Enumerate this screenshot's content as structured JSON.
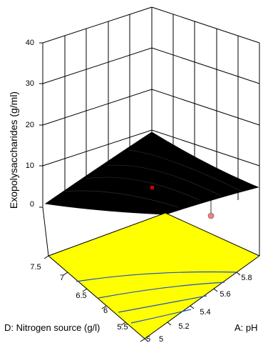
{
  "chart_data": {
    "type": "surface3d",
    "zlabel": "Exopolysaccharides (g/ml)",
    "xlabel": "A: pH",
    "ylabel": "D: Nitrogen source (g/l)",
    "z_ticks": [
      "0",
      "10",
      "20",
      "30",
      "40"
    ],
    "x_ticks": [
      "5",
      "5.2",
      "5.4",
      "5.6",
      "5.8"
    ],
    "y_ticks": [
      "5",
      "5.5",
      "6",
      "6.5",
      "7",
      "7.5"
    ],
    "zlim": [
      0,
      40
    ],
    "xlim": [
      5,
      6
    ],
    "ylim": [
      5,
      7.5
    ],
    "surface_color": "#000000",
    "base_plane_color": "#ffff00",
    "contour_color": "#1f4fd0",
    "design_points": [
      {
        "x": 5.5,
        "y": 6.25,
        "z": 1.4,
        "position": "above surface",
        "color": "#cc0000"
      },
      {
        "x": 6.0,
        "y": 5.0,
        "z": 0.0,
        "position": "below surface",
        "color": "#f08080"
      }
    ]
  }
}
